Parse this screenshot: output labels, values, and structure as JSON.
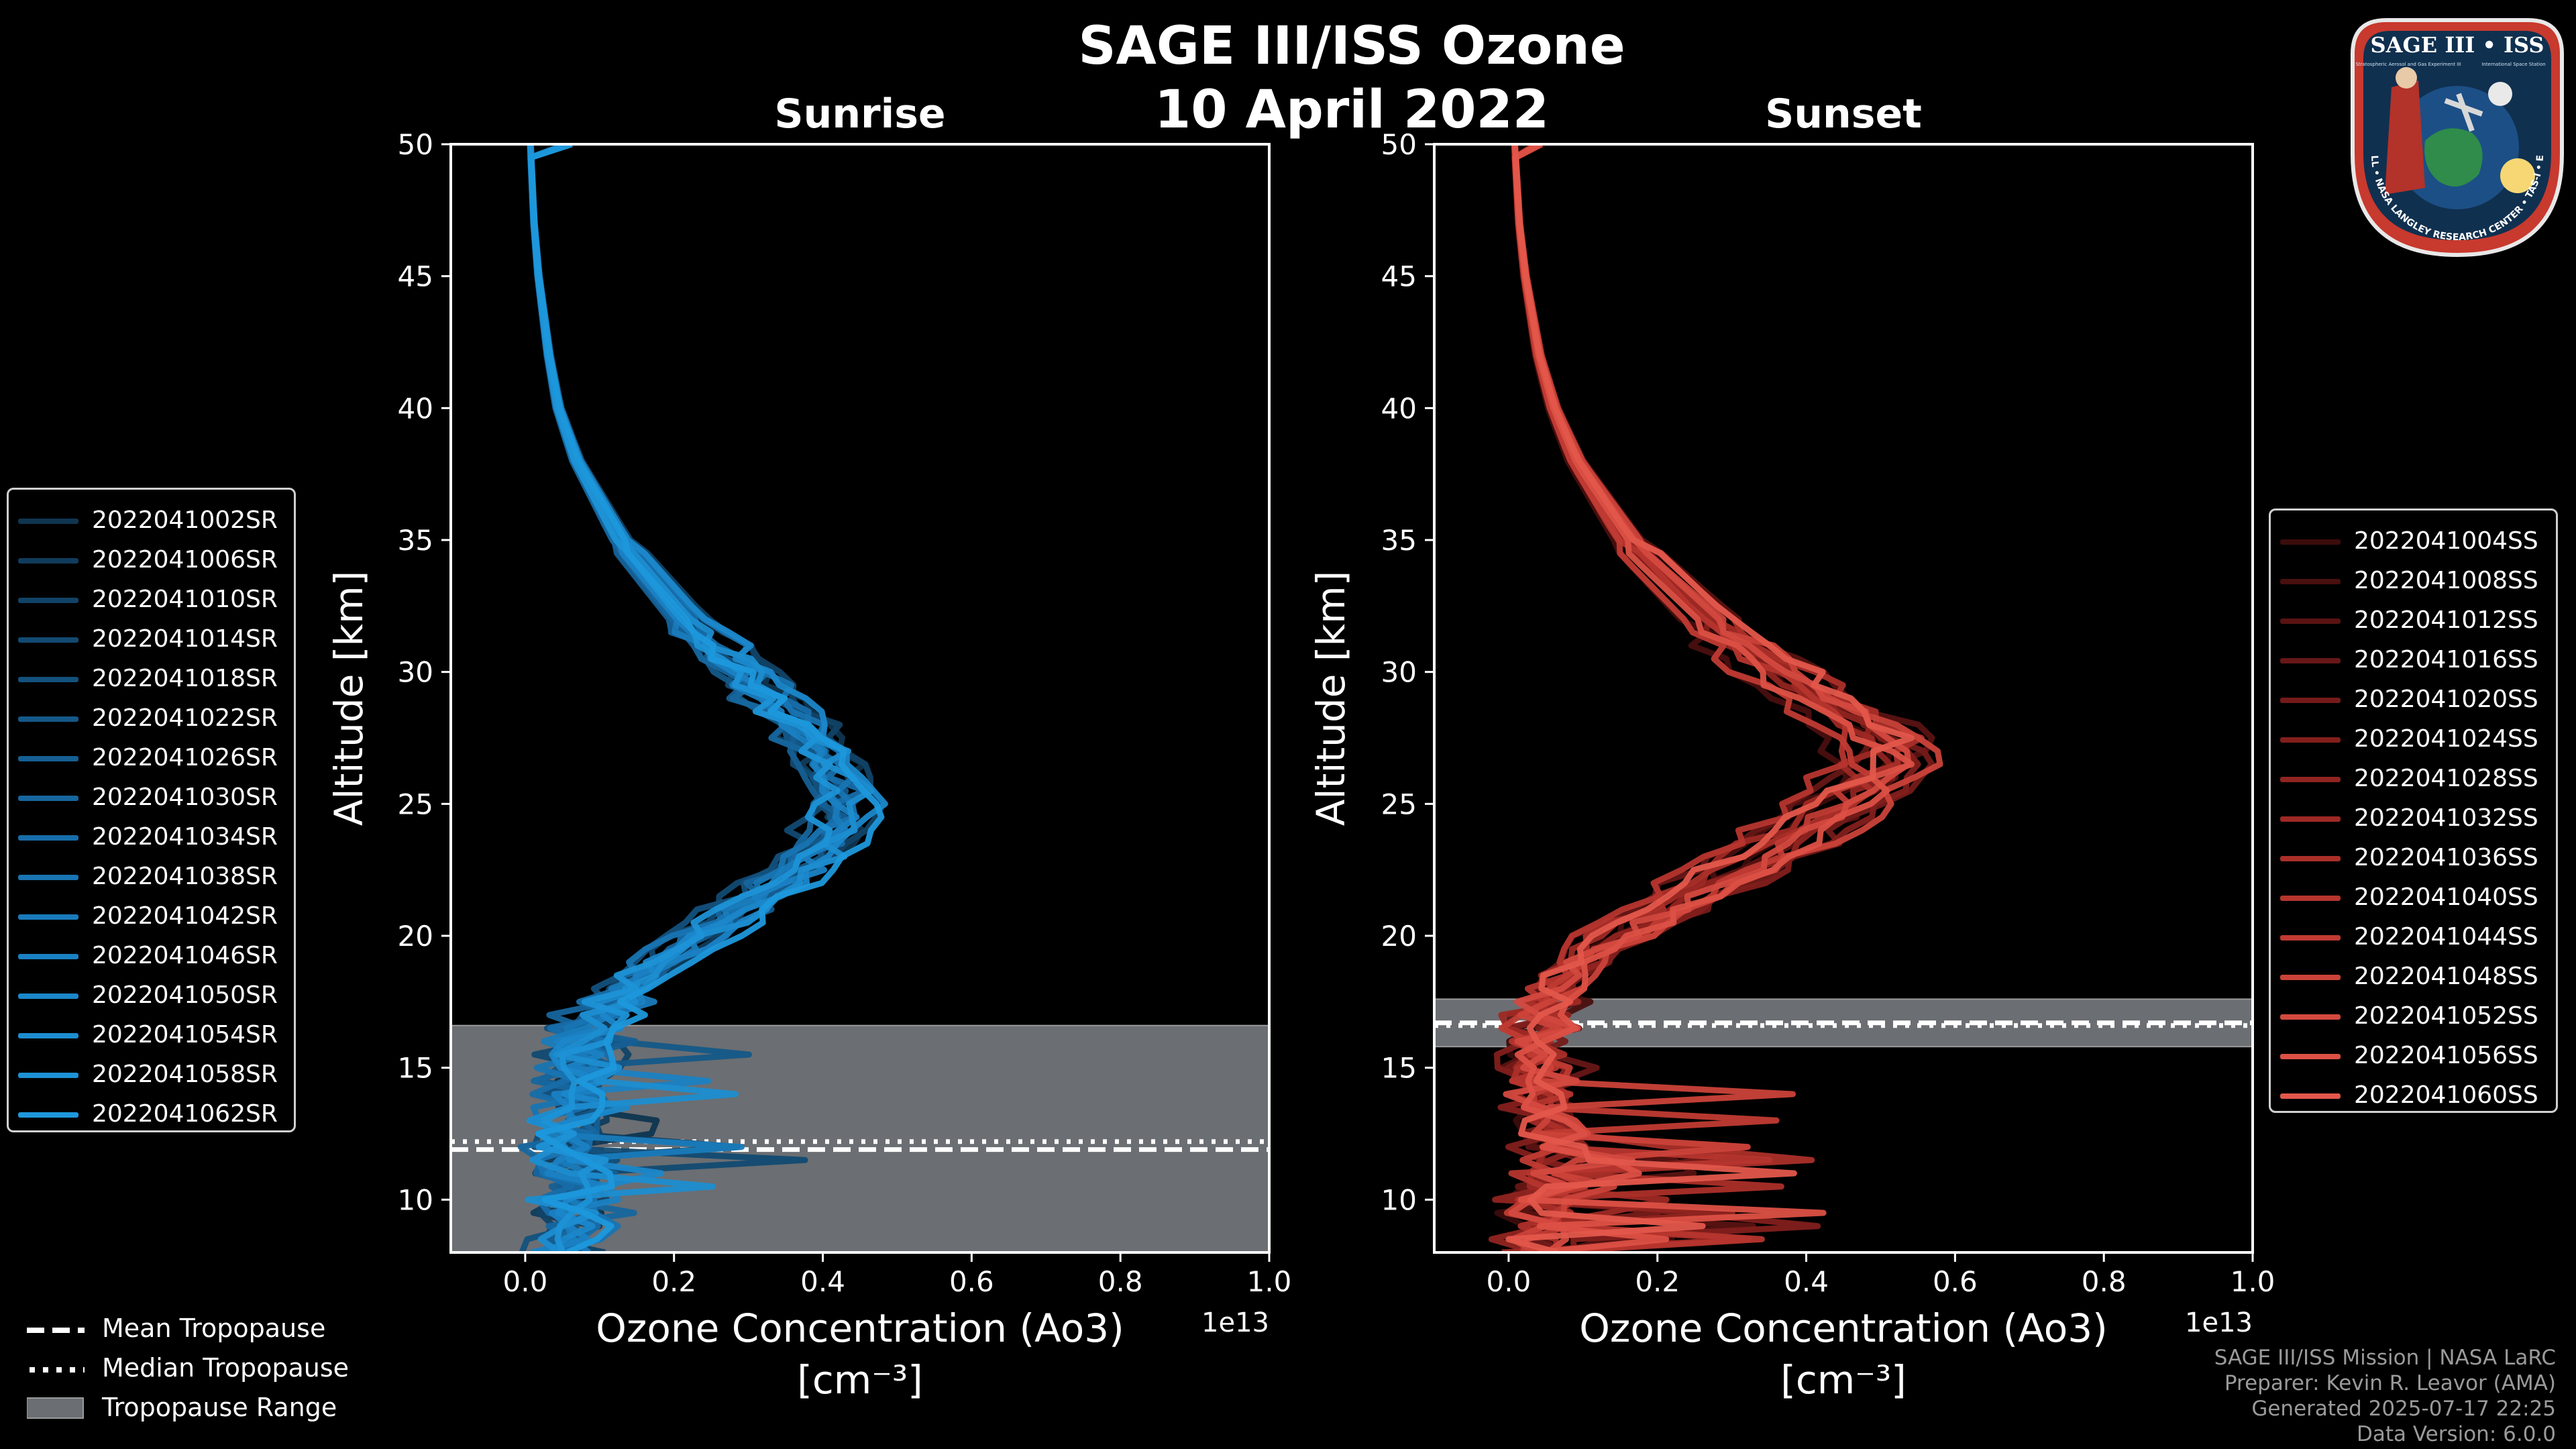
{
  "header": {
    "title": "SAGE III/ISS Ozone",
    "date": "10 April 2022"
  },
  "badge": {
    "top_text": "SAGE III • ISS",
    "sub_left": "Stratospheric Aerosol and Gas Experiment III",
    "sub_right": "International Space Station",
    "ring_text": "BALL • NASA LANGLEY RESEARCH CENTER • TAS-I • ESA"
  },
  "footer_legend": {
    "mean": "Mean Tropopause",
    "median": "Median Tropopause",
    "range": "Tropopause Range"
  },
  "credits": {
    "line1": "SAGE III/ISS Mission | NASA LaRC",
    "line2": "Preparer: Kevin R. Leavor (AMA)",
    "line3": "Generated 2025-07-17 22:25",
    "line4": "Data Version: 6.0.0"
  },
  "colors": {
    "sunrise": "#1e8fce",
    "sunset": "#e05a4a",
    "tropopause_fill": "#6b6e72"
  },
  "chart_data": [
    {
      "type": "line",
      "title": "Sunrise",
      "xlabel": "Ozone Concentration (Ao3)",
      "xunit": "[cm⁻³]",
      "ylabel": "Altitude [km]",
      "offset_label": "1e13",
      "xlim": [
        -0.1,
        1.0
      ],
      "ylim": [
        8,
        50
      ],
      "xticks": [
        "0.0",
        "0.2",
        "0.4",
        "0.6",
        "0.8",
        "1.0"
      ],
      "yticks": [
        "10",
        "15",
        "20",
        "25",
        "30",
        "35",
        "40",
        "45",
        "50"
      ],
      "tropopause": {
        "mean": 11.9,
        "median": 12.2,
        "min": 8,
        "max": 16.6
      },
      "typical_profile": {
        "altitude": [
          50,
          47,
          45,
          42,
          40,
          38,
          35,
          32,
          30,
          28,
          27,
          26,
          25,
          24,
          23,
          22,
          21,
          20,
          19,
          18,
          17,
          16,
          15,
          14,
          13,
          12,
          11,
          10,
          9,
          8
        ],
        "value": [
          0.007,
          0.012,
          0.018,
          0.032,
          0.045,
          0.07,
          0.13,
          0.22,
          0.3,
          0.37,
          0.41,
          0.43,
          0.44,
          0.43,
          0.4,
          0.35,
          0.3,
          0.24,
          0.18,
          0.14,
          0.1,
          0.09,
          0.08,
          0.07,
          0.07,
          0.07,
          0.07,
          0.06,
          0.06,
          0.06
        ]
      },
      "series": [
        {
          "name": "2022041002SR",
          "color": "#0f3550"
        },
        {
          "name": "2022041006SR",
          "color": "#103c5c"
        },
        {
          "name": "2022041010SR",
          "color": "#114367"
        },
        {
          "name": "2022041014SR",
          "color": "#124a72"
        },
        {
          "name": "2022041018SR",
          "color": "#13517d"
        },
        {
          "name": "2022041022SR",
          "color": "#145888"
        },
        {
          "name": "2022041026SR",
          "color": "#155f93"
        },
        {
          "name": "2022041030SR",
          "color": "#16669e"
        },
        {
          "name": "2022041034SR",
          "color": "#176da9"
        },
        {
          "name": "2022041038SR",
          "color": "#1874b2"
        },
        {
          "name": "2022041042SR",
          "color": "#197bbb"
        },
        {
          "name": "2022041046SR",
          "color": "#1a81c3"
        },
        {
          "name": "2022041050SR",
          "color": "#1b87ca"
        },
        {
          "name": "2022041054SR",
          "color": "#1c8dd0"
        },
        {
          "name": "2022041058SR",
          "color": "#1d92d6"
        },
        {
          "name": "2022041062SR",
          "color": "#1e98dc"
        }
      ]
    },
    {
      "type": "line",
      "title": "Sunset",
      "xlabel": "Ozone Concentration (Ao3)",
      "xunit": "[cm⁻³]",
      "ylabel": "Altitude [km]",
      "offset_label": "1e13",
      "xlim": [
        -0.1,
        1.0
      ],
      "ylim": [
        8,
        50
      ],
      "xticks": [
        "0.0",
        "0.2",
        "0.4",
        "0.6",
        "0.8",
        "1.0"
      ],
      "yticks": [
        "10",
        "15",
        "20",
        "25",
        "30",
        "35",
        "40",
        "45",
        "50"
      ],
      "tropopause": {
        "mean": 16.7,
        "median": 16.6,
        "min": 15.8,
        "max": 17.6
      },
      "typical_profile": {
        "altitude": [
          50,
          47,
          45,
          42,
          40,
          38,
          35,
          32,
          30,
          29,
          28,
          27,
          26,
          25,
          24,
          23,
          22,
          21,
          20,
          19,
          18,
          17,
          16,
          15,
          14,
          13,
          12,
          11,
          10,
          9,
          8
        ],
        "value": [
          0.008,
          0.014,
          0.022,
          0.04,
          0.06,
          0.09,
          0.16,
          0.27,
          0.36,
          0.42,
          0.47,
          0.51,
          0.48,
          0.44,
          0.39,
          0.33,
          0.27,
          0.2,
          0.14,
          0.09,
          0.06,
          0.04,
          0.03,
          0.03,
          0.04,
          0.05,
          0.05,
          0.05,
          0.04,
          0.04,
          0.04
        ]
      },
      "series": [
        {
          "name": "2022041004SS",
          "color": "#3c0c0c"
        },
        {
          "name": "2022041008SS",
          "color": "#4a0f0f"
        },
        {
          "name": "2022041012SS",
          "color": "#581312"
        },
        {
          "name": "2022041016SS",
          "color": "#661716"
        },
        {
          "name": "2022041020SS",
          "color": "#741b19"
        },
        {
          "name": "2022041024SS",
          "color": "#821f1c"
        },
        {
          "name": "2022041028SS",
          "color": "#902420"
        },
        {
          "name": "2022041032SS",
          "color": "#9e2924"
        },
        {
          "name": "2022041036SS",
          "color": "#ab2f29"
        },
        {
          "name": "2022041040SS",
          "color": "#b6352e"
        },
        {
          "name": "2022041044SS",
          "color": "#c03b33"
        },
        {
          "name": "2022041048SS",
          "color": "#ca4239"
        },
        {
          "name": "2022041052SS",
          "color": "#d3493f"
        },
        {
          "name": "2022041056SS",
          "color": "#dc5045"
        },
        {
          "name": "2022041060SS",
          "color": "#e3574b"
        }
      ]
    }
  ]
}
